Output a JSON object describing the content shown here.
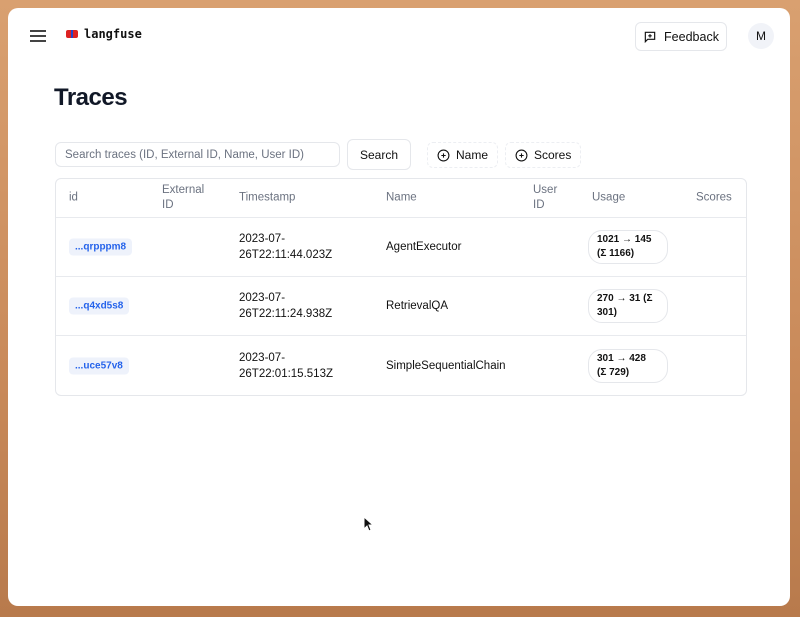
{
  "header": {
    "logo_text": "langfuse",
    "feedback_label": "Feedback",
    "avatar_initial": "M"
  },
  "page": {
    "title": "Traces"
  },
  "search": {
    "placeholder": "Search traces (ID, External ID, Name, User ID)",
    "value": "",
    "button_label": "Search"
  },
  "filters": [
    {
      "label": "Name",
      "icon": "plus-circle-icon"
    },
    {
      "label": "Scores",
      "icon": "plus-circle-icon"
    }
  ],
  "table": {
    "columns": [
      [
        "id"
      ],
      [
        "External",
        "ID"
      ],
      [
        "Timestamp"
      ],
      [
        "Name"
      ],
      [
        "User",
        "ID"
      ],
      [
        "Usage"
      ],
      [
        "Scores"
      ]
    ],
    "column_labels": [
      "id",
      "External ID",
      "Timestamp",
      "Name",
      "User ID",
      "Usage",
      "Scores"
    ],
    "rows": [
      {
        "id": "...qrpppm8",
        "external_id": "",
        "timestamp": [
          "2023-07-",
          "26T22:11:44.023Z"
        ],
        "name": "AgentExecutor",
        "user_id": "",
        "usage": [
          "1021 → 145",
          "(Σ 1166)"
        ],
        "scores": ""
      },
      {
        "id": "...q4xd5s8",
        "external_id": "",
        "timestamp": [
          "2023-07-",
          "26T22:11:24.938Z"
        ],
        "name": "RetrievalQA",
        "user_id": "",
        "usage": [
          "270 → 31 (Σ",
          "301)"
        ],
        "scores": ""
      },
      {
        "id": "...uce57v8",
        "external_id": "",
        "timestamp": [
          "2023-07-",
          "26T22:01:15.513Z"
        ],
        "name": "SimpleSequentialChain",
        "user_id": "",
        "usage": [
          "301 → 428",
          "(Σ 729)"
        ],
        "scores": ""
      }
    ]
  },
  "colors": {
    "accent": "#2563eb",
    "id_badge_bg": "#eef2fb",
    "frame": "#d9a070"
  }
}
